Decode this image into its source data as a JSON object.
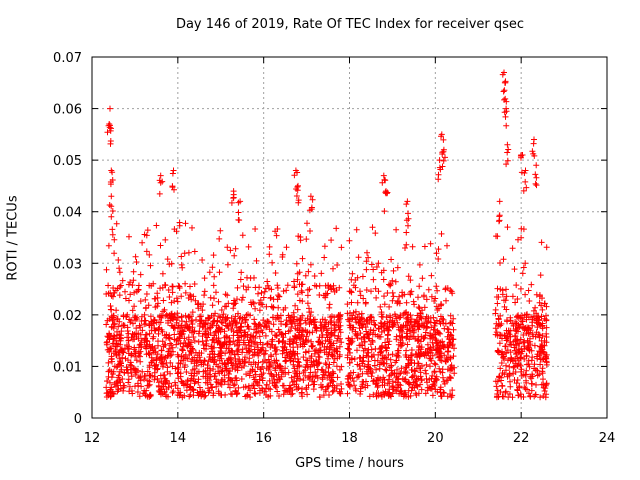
{
  "chart_data": {
    "type": "scatter",
    "title": "Day 146 of 2019, Rate Of TEC Index for receiver qsec",
    "xlabel": "GPS time / hours",
    "ylabel": "ROTI / TECUs",
    "xlim": [
      12,
      24
    ],
    "ylim": [
      0,
      0.07
    ],
    "x_ticks": [
      12,
      14,
      16,
      18,
      20,
      22,
      24
    ],
    "y_ticks": [
      0,
      0.01,
      0.02,
      0.03,
      0.04,
      0.05,
      0.06,
      0.07
    ],
    "x_tick_labels": [
      "12",
      "14",
      "16",
      "18",
      "20",
      "22",
      "24"
    ],
    "y_tick_labels": [
      "0",
      "0.01",
      "0.02",
      "0.03",
      "0.04",
      "0.05",
      "0.06",
      "0.07"
    ],
    "grid": true,
    "marker": "+",
    "color": "#ff0000",
    "series": [
      {
        "name": "ROTI",
        "segments": [
          {
            "x_range": [
              12.33,
              17.83
            ],
            "y_range": [
              0.003,
              0.03
            ]
          },
          {
            "x_range": [
              17.95,
              20.45
            ],
            "y_range": [
              0.003,
              0.03
            ]
          },
          {
            "x_range": [
              21.4,
              22.6
            ],
            "y_range": [
              0.004,
              0.03
            ]
          }
        ],
        "peaks": [
          {
            "x": 12.42,
            "y": 0.06
          },
          {
            "x": 12.4,
            "y": 0.057
          },
          {
            "x": 12.45,
            "y": 0.048
          },
          {
            "x": 12.45,
            "y": 0.043
          },
          {
            "x": 13.6,
            "y": 0.047
          },
          {
            "x": 13.9,
            "y": 0.048
          },
          {
            "x": 15.3,
            "y": 0.044
          },
          {
            "x": 15.45,
            "y": 0.042
          },
          {
            "x": 16.75,
            "y": 0.048
          },
          {
            "x": 16.8,
            "y": 0.045
          },
          {
            "x": 17.1,
            "y": 0.043
          },
          {
            "x": 18.8,
            "y": 0.047
          },
          {
            "x": 18.85,
            "y": 0.044
          },
          {
            "x": 19.35,
            "y": 0.042
          },
          {
            "x": 20.15,
            "y": 0.055
          },
          {
            "x": 20.2,
            "y": 0.052
          },
          {
            "x": 20.1,
            "y": 0.05
          },
          {
            "x": 21.6,
            "y": 0.067
          },
          {
            "x": 21.62,
            "y": 0.065
          },
          {
            "x": 21.65,
            "y": 0.06
          },
          {
            "x": 21.68,
            "y": 0.053
          },
          {
            "x": 22.0,
            "y": 0.051
          },
          {
            "x": 22.3,
            "y": 0.054
          },
          {
            "x": 22.1,
            "y": 0.048
          },
          {
            "x": 22.35,
            "y": 0.049
          },
          {
            "x": 21.5,
            "y": 0.042
          }
        ]
      }
    ]
  }
}
